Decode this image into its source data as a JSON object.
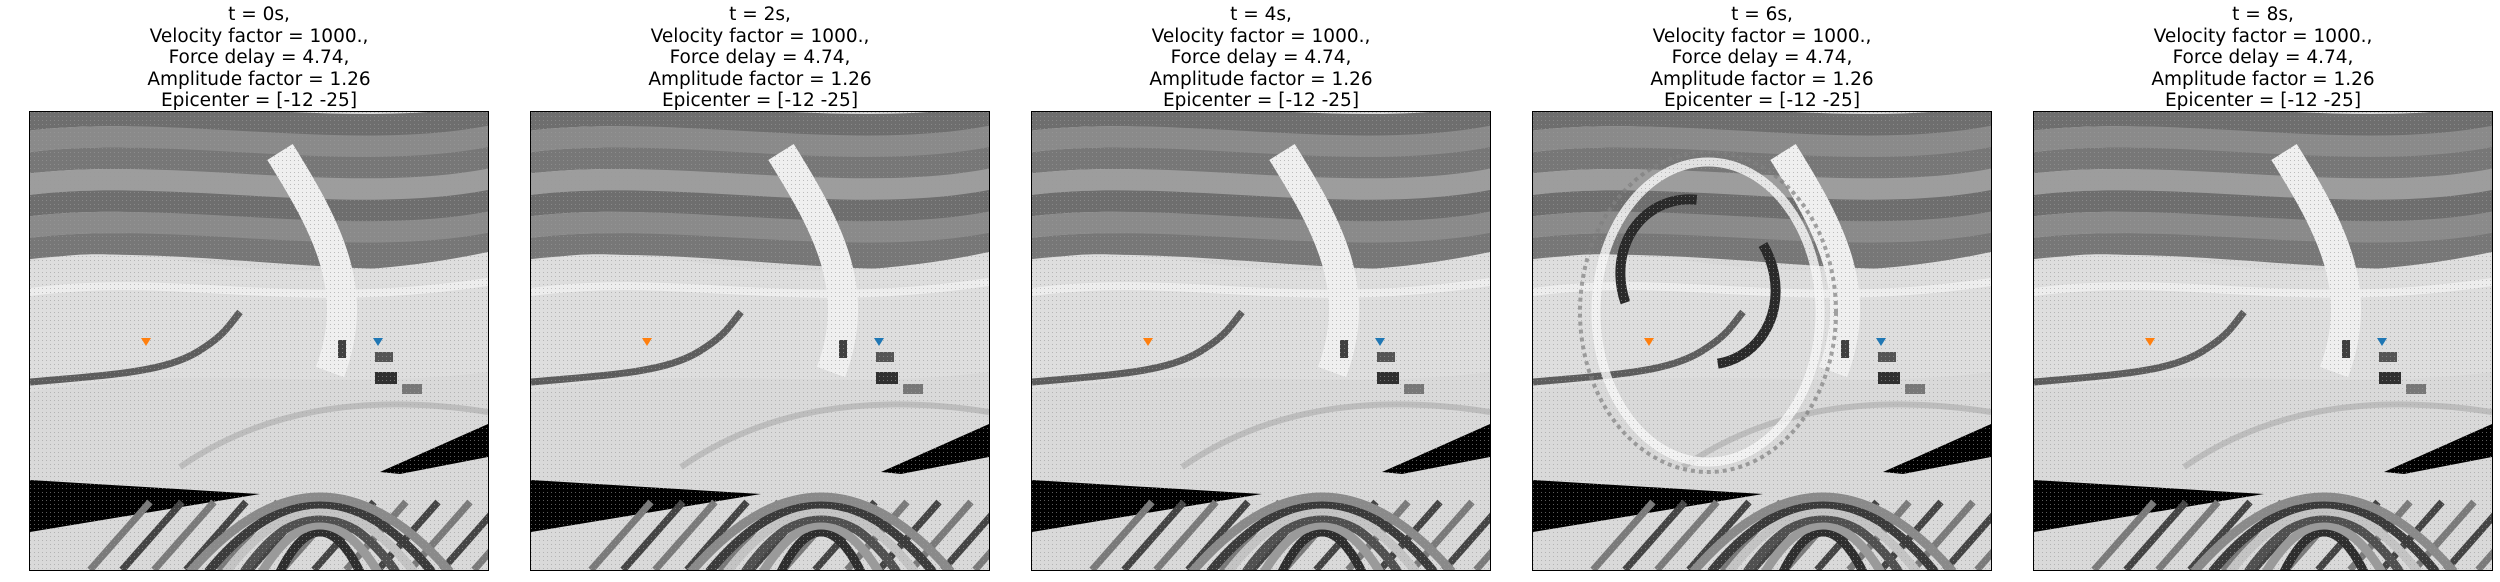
{
  "panels": [
    {
      "title": [
        "t = 0s,",
        "Velocity factor = 1000.,",
        "Force delay = 4.74,",
        "Amplitude factor = 1.26",
        "Epicenter = [-12 -25]"
      ],
      "wave": false
    },
    {
      "title": [
        "t = 2s,",
        "Velocity factor = 1000.,",
        "Force delay = 4.74,",
        "Amplitude factor = 1.26",
        "Epicenter = [-12 -25]"
      ],
      "wave": false
    },
    {
      "title": [
        "t = 4s,",
        "Velocity factor = 1000.,",
        "Force delay = 4.74,",
        "Amplitude factor = 1.26",
        "Epicenter = [-12 -25]"
      ],
      "wave": false
    },
    {
      "title": [
        "t = 6s,",
        "Velocity factor = 1000.,",
        "Force delay = 4.74,",
        "Amplitude factor = 1.26",
        "Epicenter = [-12 -25]"
      ],
      "wave": true
    },
    {
      "title": [
        "t = 8s,",
        "Velocity factor = 1000.,",
        "Force delay = 4.74,",
        "Amplitude factor = 1.26",
        "Epicenter = [-12 -25]"
      ],
      "wave": false
    }
  ],
  "markers": {
    "source_color": "#ff7f0e",
    "receiver_color": "#1f77b4",
    "source_icon": "down-triangle-icon",
    "receiver_icon": "down-triangle-icon"
  }
}
